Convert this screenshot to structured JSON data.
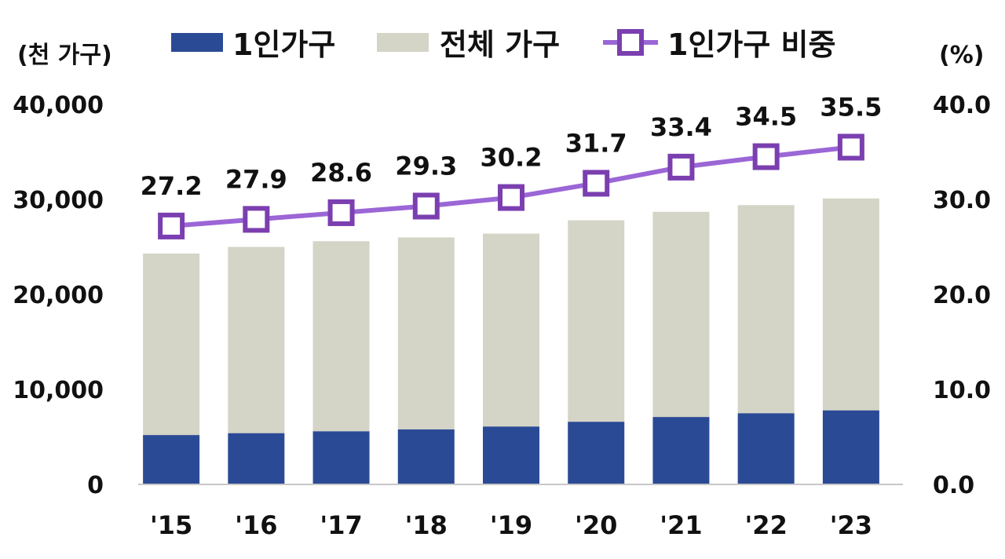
{
  "chart_data": {
    "type": "bar",
    "categories": [
      "'15",
      "'16",
      "'17",
      "'18",
      "'19",
      "'20",
      "'21",
      "'22",
      "'23"
    ],
    "series": [
      {
        "name": "1인가구",
        "kind": "bar",
        "axis": "left",
        "color": "#2b4a95",
        "values": [
          5200,
          5400,
          5600,
          5800,
          6100,
          6600,
          7100,
          7500,
          7800
        ]
      },
      {
        "name": "전체 가구",
        "kind": "bar",
        "axis": "left",
        "color": "#d4d4c7",
        "values": [
          19100,
          19600,
          20000,
          20200,
          20300,
          21200,
          21600,
          21900,
          22300
        ]
      },
      {
        "name": "1인가구 비중",
        "kind": "line",
        "axis": "right",
        "color": "#7b3fb0",
        "values": [
          27.2,
          27.9,
          28.6,
          29.3,
          30.2,
          31.7,
          33.4,
          34.5,
          35.5
        ],
        "labels": [
          "27.2",
          "27.9",
          "28.6",
          "29.3",
          "30.2",
          "31.7",
          "33.4",
          "34.5",
          "35.5"
        ]
      }
    ],
    "stacked": true,
    "y_left": {
      "label": "(천 가구)",
      "ylim": [
        0,
        40000
      ],
      "ticks": [
        0,
        10000,
        20000,
        30000,
        40000
      ],
      "tick_labels": [
        "0",
        "10,000",
        "20,000",
        "30,000",
        "40,000"
      ]
    },
    "y_right": {
      "label": "(%)",
      "ylim": [
        0,
        40
      ],
      "ticks": [
        0,
        10,
        20,
        30,
        40
      ],
      "tick_labels": [
        "0.0",
        "10.0",
        "20.0",
        "30.0",
        "40.0"
      ]
    },
    "legend": {
      "position": "top",
      "items": [
        "1인가구",
        "전체 가구",
        "1인가구 비중"
      ]
    },
    "grid": false
  }
}
